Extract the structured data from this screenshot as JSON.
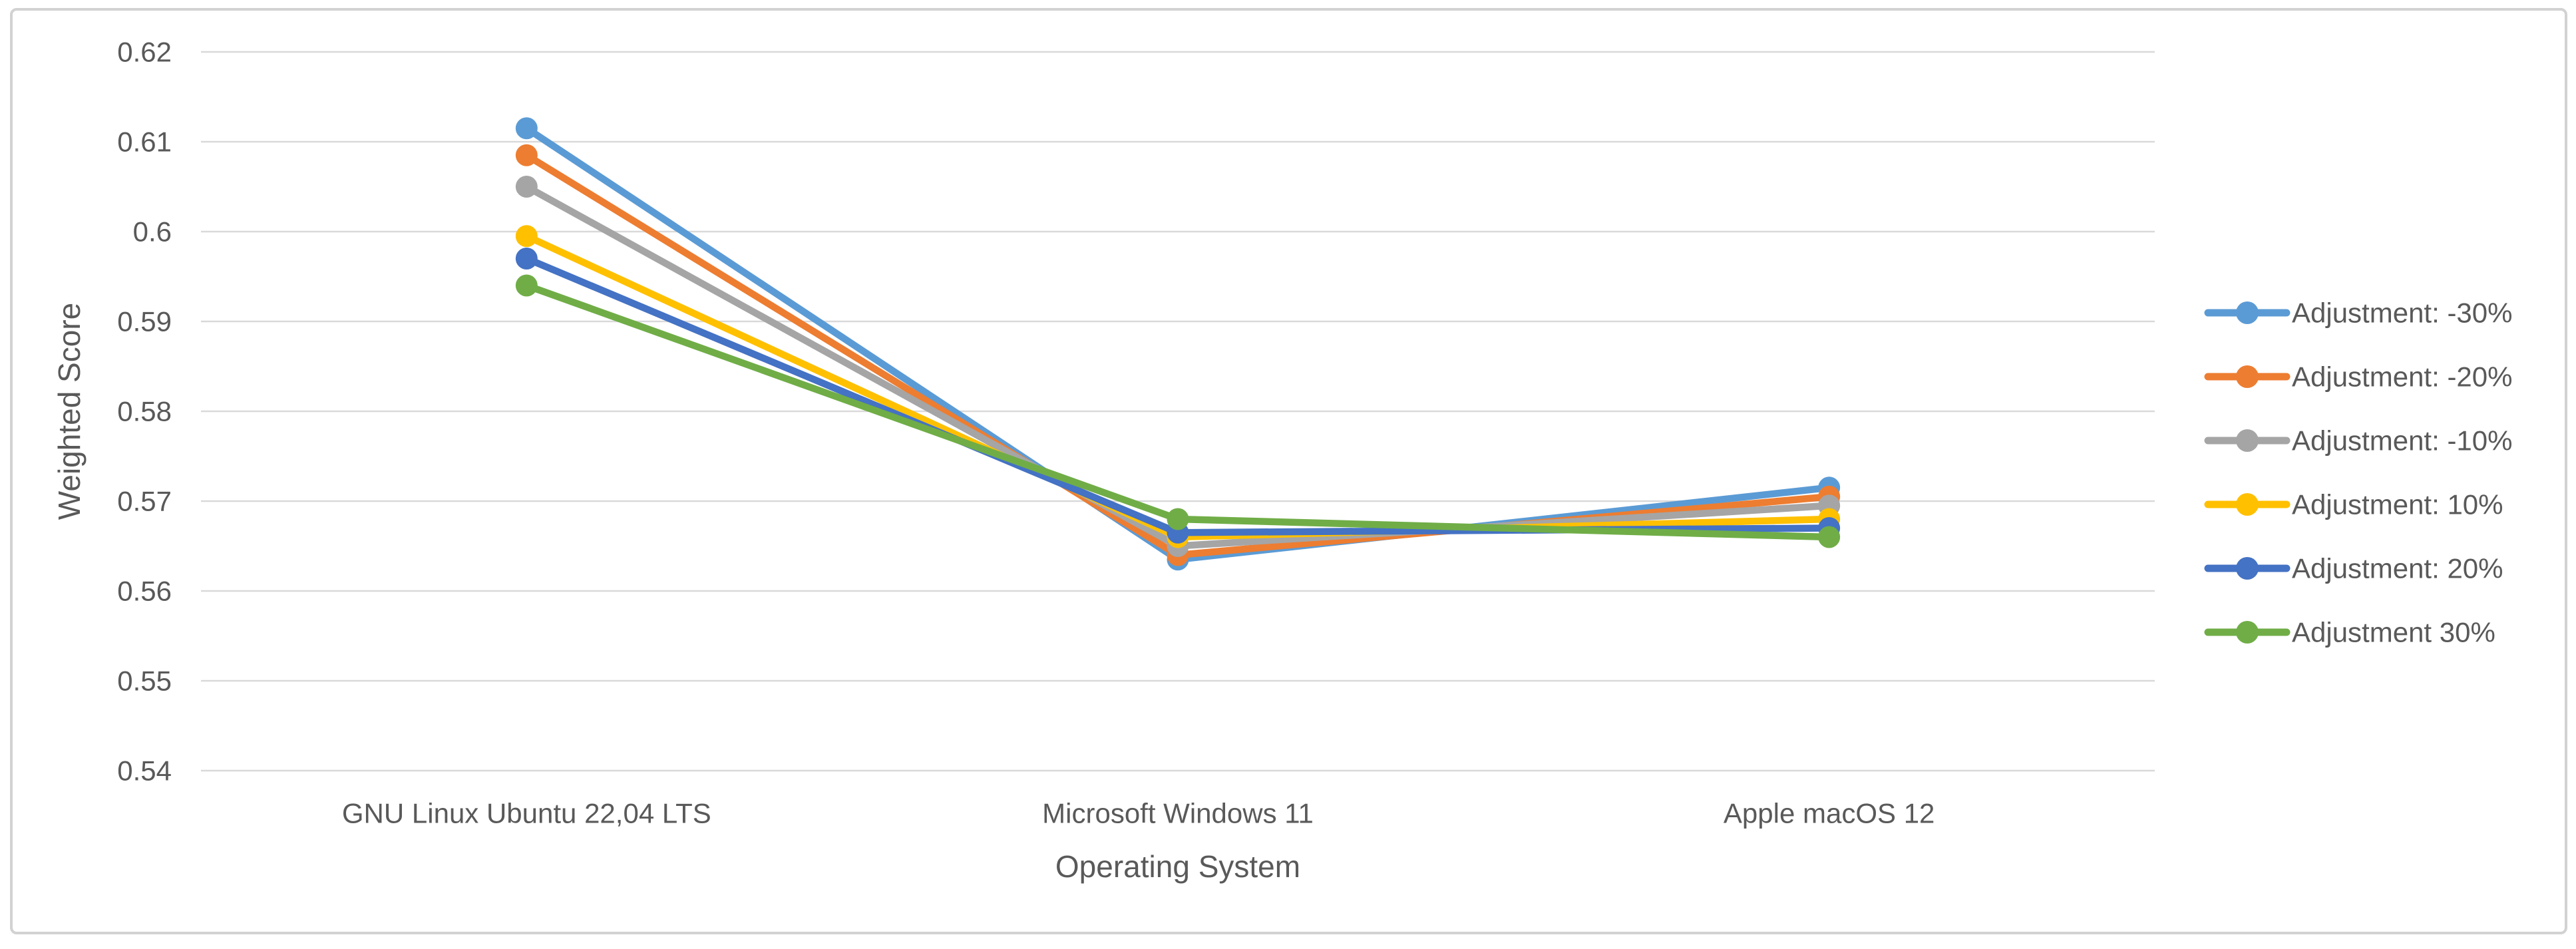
{
  "chart_data": {
    "type": "line",
    "title": "",
    "xlabel": "Operating System",
    "ylabel": "Weighted Score",
    "categories": [
      "GNU Linux Ubuntu 22,04 LTS",
      "Microsoft Windows 11",
      "Apple macOS 12"
    ],
    "series": [
      {
        "name": "Adjustment: -30%",
        "color": "#5B9BD5",
        "values": [
          0.6115,
          0.5635,
          0.5715
        ]
      },
      {
        "name": "Adjustment: -20%",
        "color": "#ED7D31",
        "values": [
          0.6085,
          0.564,
          0.5705
        ]
      },
      {
        "name": "Adjustment: -10%",
        "color": "#A5A5A5",
        "values": [
          0.605,
          0.565,
          0.5695
        ]
      },
      {
        "name": "Adjustment: 10%",
        "color": "#FFC000",
        "values": [
          0.5995,
          0.566,
          0.568
        ]
      },
      {
        "name": "Adjustment: 20%",
        "color": "#4472C4",
        "values": [
          0.597,
          0.5665,
          0.567
        ]
      },
      {
        "name": "Adjustment 30%",
        "color": "#70AD47",
        "values": [
          0.594,
          0.568,
          0.566
        ]
      }
    ],
    "ylim": [
      0.54,
      0.62
    ],
    "ytick_step": 0.01,
    "ytick_labels": [
      "0.62",
      "0.61",
      "0.6",
      "0.59",
      "0.58",
      "0.57",
      "0.56",
      "0.55",
      "0.54"
    ],
    "grid": true,
    "legend_position": "right",
    "marker": "circle"
  },
  "colors": {
    "text": "#595959",
    "gridline": "#D9D9D9",
    "card_border": "#D2D2D2",
    "background": "#FFFFFF"
  }
}
